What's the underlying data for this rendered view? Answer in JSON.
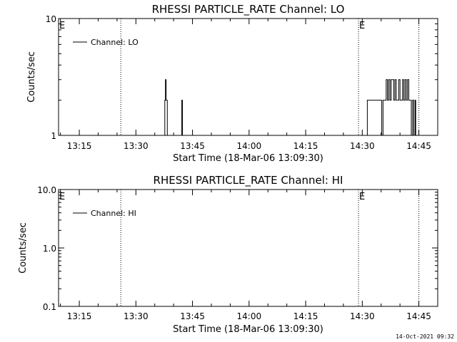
{
  "chart_data": [
    {
      "type": "line",
      "title": "RHESSI PARTICLE_RATE Channel: LO",
      "xlabel": "Start Time (18-Mar-06 13:09:30)",
      "ylabel": "Counts/sec",
      "yscale": "log",
      "ylim": [
        1,
        10
      ],
      "xlim": [
        "13:09:30",
        "14:50:00"
      ],
      "xticks": [
        "13:15",
        "13:30",
        "13:45",
        "14:00",
        "14:15",
        "14:30",
        "14:45"
      ],
      "yticks": [
        "1",
        "10"
      ],
      "legend": "Channel: LO",
      "legend_position": "top-left",
      "markers": [
        "13:26",
        "14:29",
        "14:45"
      ],
      "marker_label": "E",
      "series": [
        {
          "name": "Channel: LO",
          "segments": [
            [
              [
                "13:37:30",
                1
              ],
              [
                "13:37:40",
                2
              ],
              [
                "13:37:50",
                3
              ],
              [
                "13:38:00",
                2
              ],
              [
                "13:38:10",
                2
              ],
              [
                "13:38:20",
                1
              ]
            ],
            [
              [
                "13:42:00",
                1
              ],
              [
                "13:42:10",
                2
              ],
              [
                "13:42:20",
                1
              ]
            ],
            [
              [
                "14:31:00",
                1
              ],
              [
                "14:31:20",
                2
              ],
              [
                "14:35:00",
                2
              ],
              [
                "14:35:10",
                1
              ],
              [
                "14:35:30",
                2
              ],
              [
                "14:36:00",
                2
              ],
              [
                "14:36:20",
                3
              ],
              [
                "14:36:40",
                2
              ],
              [
                "14:37:00",
                3
              ],
              [
                "14:37:20",
                2
              ],
              [
                "14:37:40",
                3
              ],
              [
                "14:38:00",
                3
              ],
              [
                "14:38:20",
                2
              ],
              [
                "14:38:40",
                3
              ],
              [
                "14:39:00",
                2
              ],
              [
                "14:39:20",
                2
              ],
              [
                "14:39:40",
                3
              ],
              [
                "14:40:00",
                2
              ],
              [
                "14:40:20",
                2
              ],
              [
                "14:40:40",
                3
              ],
              [
                "14:41:00",
                2
              ],
              [
                "14:41:20",
                3
              ],
              [
                "14:41:40",
                2
              ],
              [
                "14:42:00",
                3
              ],
              [
                "14:42:20",
                2
              ],
              [
                "14:42:40",
                2
              ],
              [
                "14:43:00",
                1
              ],
              [
                "14:43:20",
                2
              ],
              [
                "14:43:40",
                1
              ],
              [
                "14:44:00",
                2
              ],
              [
                "14:44:10",
                1
              ]
            ]
          ]
        }
      ]
    },
    {
      "type": "line",
      "title": "RHESSI PARTICLE_RATE Channel: HI",
      "xlabel": "Start Time (18-Mar-06 13:09:30)",
      "ylabel": "Counts/sec",
      "yscale": "log",
      "ylim": [
        0.1,
        10
      ],
      "xlim": [
        "13:09:30",
        "14:50:00"
      ],
      "xticks": [
        "13:15",
        "13:30",
        "13:45",
        "14:00",
        "14:15",
        "14:30",
        "14:45"
      ],
      "yticks": [
        "0.1",
        "1.0",
        "10.0"
      ],
      "legend": "Channel: HI",
      "legend_position": "top-left",
      "markers": [
        "13:26",
        "14:29",
        "14:45"
      ],
      "marker_label": "E",
      "series": [
        {
          "name": "Channel: HI",
          "segments": []
        }
      ]
    }
  ],
  "footer": {
    "timestamp": "14-Oct-2021 09:32"
  }
}
